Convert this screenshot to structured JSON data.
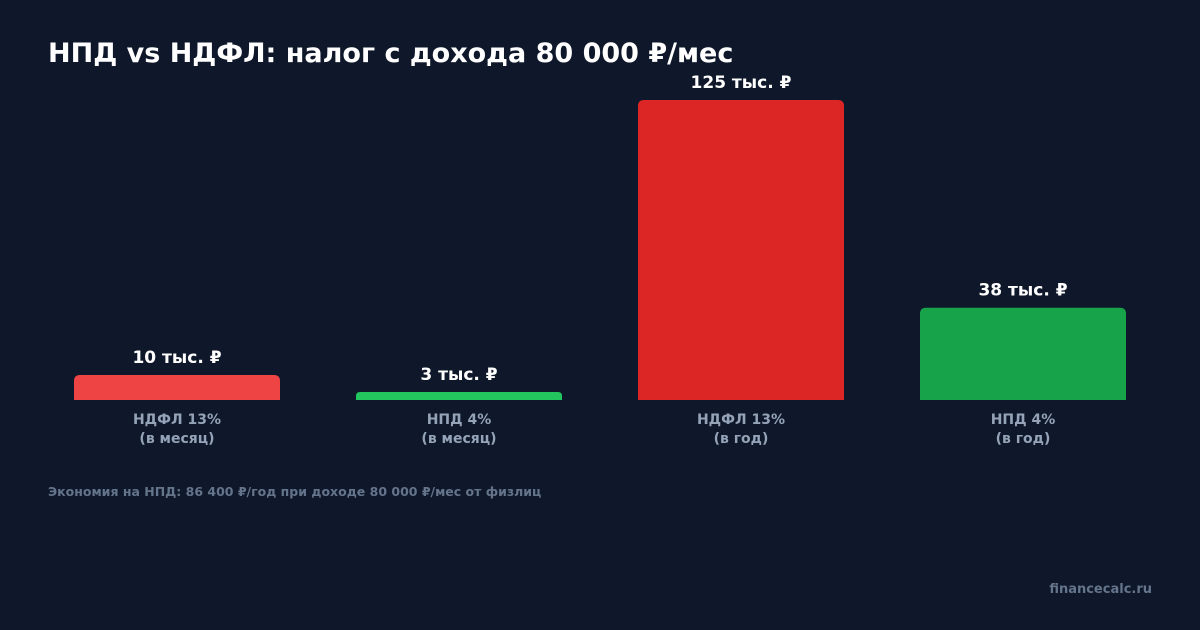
{
  "chart_data": {
    "type": "bar",
    "title": "НПД vs НДФЛ: налог с дохода 80 000 ₽/мес",
    "categories": [
      [
        "НДФЛ 13%",
        "(в месяц)"
      ],
      [
        "НПД 4%",
        "(в месяц)"
      ],
      [
        "НДФЛ 13%",
        "(в год)"
      ],
      [
        "НПД 4%",
        "(в год)"
      ]
    ],
    "values": [
      10400,
      3200,
      124800,
      38400
    ],
    "value_labels": [
      "10 тыс. ₽",
      "3 тыс. ₽",
      "125 тыс. ₽",
      "38 тыс. ₽"
    ],
    "colors": [
      "#ef4444",
      "#22c55e",
      "#dc2626",
      "#16a34a"
    ],
    "ylim": [
      0,
      124800
    ],
    "grid": false,
    "xlabel": "",
    "ylabel": ""
  },
  "footnote": "Экономия на НПД: 86 400 ₽/год при доходе 80 000 ₽/мес от физлиц",
  "brand": "financecalc.ru",
  "background_color": "#0f172a"
}
